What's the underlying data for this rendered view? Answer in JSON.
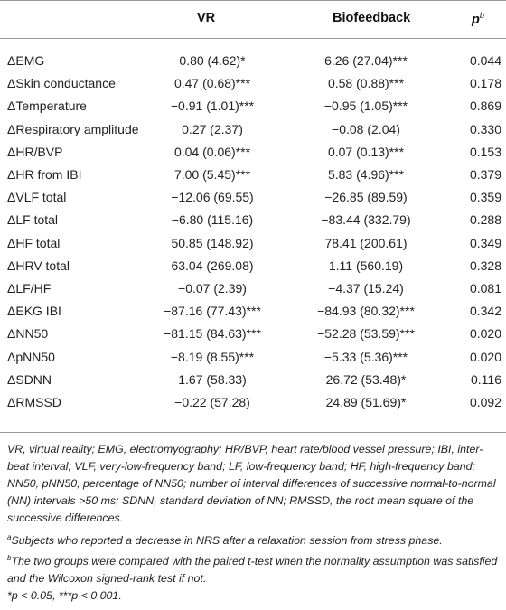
{
  "header": {
    "vr": "VR",
    "biofeedback": "Biofeedback",
    "p": "p",
    "p_sup": "b"
  },
  "rows": [
    {
      "label": "ΔEMG",
      "vr": "0.80 (4.62)*",
      "bio": "6.26 (27.04)***",
      "p": "0.044"
    },
    {
      "label": "ΔSkin conductance",
      "vr": "0.47 (0.68)***",
      "bio": "0.58 (0.88)***",
      "p": "0.178"
    },
    {
      "label": "ΔTemperature",
      "vr": "−0.91 (1.01)***",
      "bio": "−0.95 (1.05)***",
      "p": "0.869"
    },
    {
      "label": "ΔRespiratory amplitude",
      "vr": "0.27 (2.37)",
      "bio": "−0.08 (2.04)",
      "p": "0.330"
    },
    {
      "label": "ΔHR/BVP",
      "vr": "0.04 (0.06)***",
      "bio": "0.07 (0.13)***",
      "p": "0.153"
    },
    {
      "label": "ΔHR from IBI",
      "vr": "7.00 (5.45)***",
      "bio": "5.83 (4.96)***",
      "p": "0.379"
    },
    {
      "label": "ΔVLF total",
      "vr": "−12.06 (69.55)",
      "bio": "−26.85 (89.59)",
      "p": "0.359"
    },
    {
      "label": "ΔLF total",
      "vr": "−6.80 (115.16)",
      "bio": "−83.44 (332.79)",
      "p": "0.288"
    },
    {
      "label": "ΔHF total",
      "vr": "50.85 (148.92)",
      "bio": "78.41 (200.61)",
      "p": "0.349"
    },
    {
      "label": "ΔHRV total",
      "vr": "63.04 (269.08)",
      "bio": "1.11 (560.19)",
      "p": "0.328"
    },
    {
      "label": "ΔLF/HF",
      "vr": "−0.07 (2.39)",
      "bio": "−4.37 (15.24)",
      "p": "0.081"
    },
    {
      "label": "ΔEKG IBI",
      "vr": "−87.16 (77.43)***",
      "bio": "−84.93 (80.32)***",
      "p": "0.342"
    },
    {
      "label": "ΔNN50",
      "vr": "−81.15 (84.63)***",
      "bio": "−52.28 (53.59)***",
      "p": "0.020"
    },
    {
      "label": "ΔpNN50",
      "vr": "−8.19 (8.55)***",
      "bio": "−5.33 (5.36)***",
      "p": "0.020"
    },
    {
      "label": "ΔSDNN",
      "vr": "1.67 (58.33)",
      "bio": "26.72 (53.48)*",
      "p": "0.116"
    },
    {
      "label": "ΔRMSSD",
      "vr": "−0.22 (57.28)",
      "bio": "24.89 (51.69)*",
      "p": "0.092"
    }
  ],
  "notes": {
    "abbreviations": "VR, virtual reality; EMG, electromyography; HR/BVP, heart rate/blood vessel pressure; IBI, inter-beat interval; VLF, very-low-frequency band; LF, low-frequency band; HF, high-frequency band; NN50, pNN50, percentage of NN50; number of interval differences of successive normal-to-normal (NN) intervals >50 ms; SDNN, standard deviation of NN; RMSSD, the root mean square of the successive differences.",
    "a_mark": "a",
    "a_text": "Subjects who reported a decrease in NRS after a relaxation session from stress phase.",
    "b_mark": "b",
    "b_text": "The two groups were compared with the paired t-test when the normality assumption was satisfied and the Wilcoxon signed-rank test if not.",
    "sig": "*p < 0.05, ***p < 0.001."
  }
}
